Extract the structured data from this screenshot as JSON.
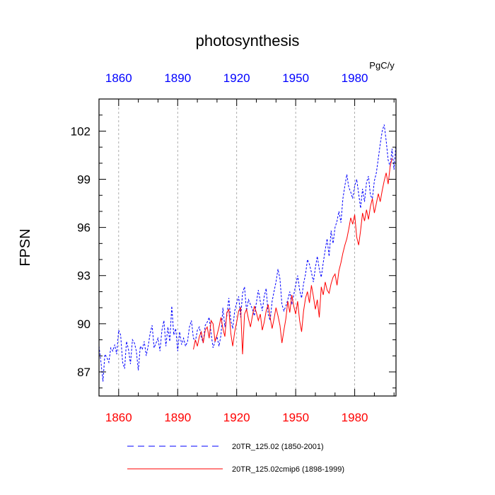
{
  "chart_data": {
    "type": "line",
    "title": "photosynthesis",
    "ylabel": "FPSN",
    "units_label": "PgC/y",
    "xlim": [
      1850,
      2001
    ],
    "ylim": [
      85.5,
      104
    ],
    "yticks": [
      87,
      90,
      93,
      96,
      99,
      102
    ],
    "xticks": [
      1860,
      1890,
      1920,
      1950,
      1980
    ],
    "top_axis_color": "#0000ff",
    "bottom_axis_color": "#ff0000",
    "grid": "vertical dashed at x ticks",
    "series": [
      {
        "name": "20TR_125.02 (1850-2001)",
        "color": "#0000ff",
        "style": "dashed",
        "x_start": 1850,
        "values": [
          88.6,
          87.6,
          86.4,
          88.1,
          87.9,
          87.6,
          88.5,
          88.3,
          88.7,
          88.1,
          89.6,
          89.3,
          87.6,
          87.2,
          88.9,
          88.4,
          87.5,
          89.0,
          88.8,
          88.3,
          87.1,
          88.6,
          88.4,
          88.9,
          88.0,
          88.6,
          89.4,
          89.9,
          88.5,
          88.8,
          89.1,
          88.3,
          89.6,
          90.2,
          88.6,
          89.8,
          88.9,
          91.1,
          89.3,
          89.7,
          88.3,
          89.5,
          88.7,
          89.1,
          88.6,
          88.9,
          89.8,
          90.2,
          89.1,
          88.9,
          89.6,
          89.8,
          89.2,
          88.8,
          89.9,
          90.1,
          90.4,
          89.4,
          88.5,
          88.9,
          89.2,
          88.6,
          89.3,
          91.0,
          89.8,
          90.5,
          91.6,
          90.2,
          89.7,
          90.8,
          91.3,
          91.7,
          90.4,
          91.9,
          92.3,
          90.8,
          91.5,
          91.2,
          90.9,
          90.5,
          91.3,
          92.1,
          91.4,
          90.8,
          91.7,
          92.2,
          90.6,
          90.2,
          91.4,
          92.0,
          92.6,
          93.4,
          92.8,
          91.2,
          90.8,
          91.1,
          91.5,
          92.0,
          91.2,
          91.8,
          92.4,
          93.0,
          92.1,
          91.6,
          92.5,
          93.1,
          94.0,
          93.7,
          93.2,
          92.6,
          93.5,
          94.2,
          93.4,
          92.9,
          93.8,
          94.6,
          95.3,
          94.2,
          95.8,
          95.0,
          96.0,
          96.4,
          97.0,
          96.3,
          97.8,
          98.6,
          99.3,
          98.5,
          98.2,
          97.8,
          98.6,
          99.0,
          98.1,
          97.2,
          98.4,
          97.6,
          98.8,
          99.2,
          98.0,
          97.8,
          98.9,
          99.4,
          100.3,
          101.2,
          102.0,
          102.4,
          101.4,
          100.2,
          99.8,
          100.9,
          99.6,
          101.2
        ]
      },
      {
        "name": "20TR_125.02cmip6 (1898-1999)",
        "color": "#ff0000",
        "style": "solid",
        "x_start": 1898,
        "values": [
          88.4,
          89.0,
          88.6,
          89.2,
          89.5,
          88.8,
          89.6,
          89.8,
          89.1,
          90.2,
          90.0,
          88.9,
          89.3,
          89.8,
          90.4,
          89.7,
          89.2,
          90.7,
          90.9,
          89.4,
          88.6,
          89.5,
          90.1,
          90.8,
          91.0,
          88.1,
          90.6,
          90.9,
          90.3,
          89.8,
          90.5,
          91.1,
          90.7,
          90.2,
          90.6,
          89.6,
          90.1,
          90.8,
          91.2,
          90.4,
          89.7,
          90.3,
          91.0,
          90.5,
          89.9,
          88.8,
          89.6,
          90.3,
          91.4,
          90.7,
          91.8,
          91.1,
          90.6,
          91.4,
          90.2,
          89.5,
          90.8,
          91.6,
          92.0,
          91.3,
          92.4,
          91.7,
          90.9,
          91.5,
          90.4,
          92.3,
          91.8,
          92.6,
          92.1,
          91.9,
          92.5,
          92.9,
          93.1,
          92.4,
          93.3,
          93.8,
          94.4,
          94.9,
          95.3,
          95.9,
          96.6,
          96.2,
          96.8,
          95.4,
          94.9,
          95.8,
          96.9,
          96.4,
          97.1,
          96.5,
          97.3,
          97.8,
          96.9,
          97.5,
          98.1,
          97.6,
          98.3,
          98.9,
          99.4,
          98.7,
          99.8,
          100.3
        ]
      }
    ]
  }
}
